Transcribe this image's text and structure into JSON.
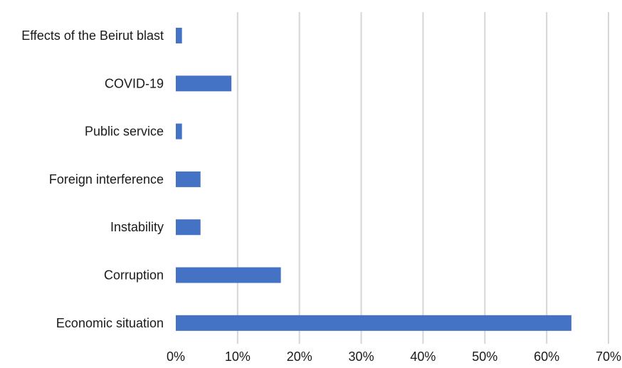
{
  "chart_data": {
    "type": "bar",
    "orientation": "horizontal",
    "categories": [
      "Effects of the Beirut blast",
      "COVID-19",
      "Public service",
      "Foreign interference",
      "Instability",
      "Corruption",
      "Economic situation"
    ],
    "values": [
      1,
      9,
      1,
      4,
      4,
      17,
      64
    ],
    "xlim": [
      0,
      70
    ],
    "x_ticks": [
      "0%",
      "10%",
      "20%",
      "30%",
      "40%",
      "50%",
      "60%",
      "70%"
    ],
    "x_tick_values": [
      0,
      10,
      20,
      30,
      40,
      50,
      60,
      70
    ],
    "title": "",
    "xlabel": "",
    "ylabel": "",
    "grid": "vertical",
    "legend": "none",
    "bar_color": "#4472c4"
  }
}
